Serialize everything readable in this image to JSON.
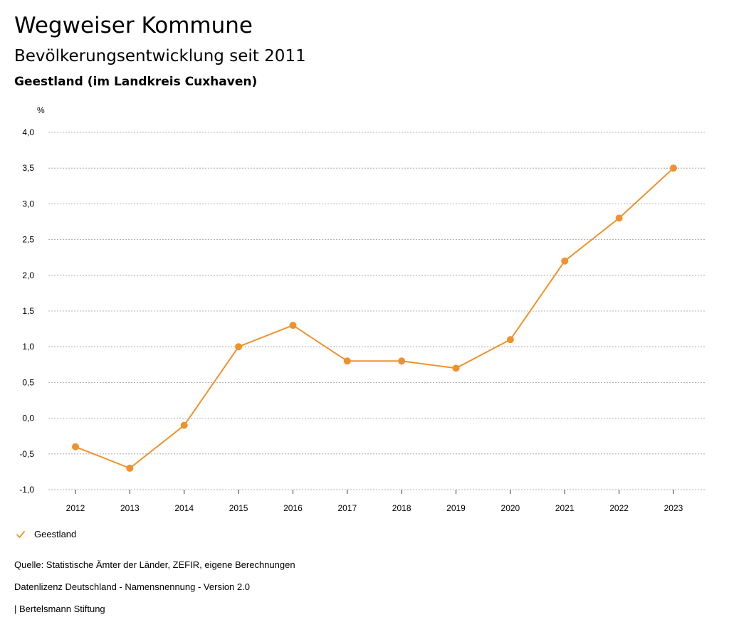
{
  "header": {
    "title": "Wegweiser Kommune",
    "subtitle": "Bevölkerungsentwicklung seit 2011",
    "region": "Geestland (im Landkreis Cuxhaven)"
  },
  "chart_data": {
    "type": "line",
    "title": "Bevölkerungsentwicklung seit 2011",
    "ylabel": "%",
    "xlabel": "",
    "ylim": [
      -1.0,
      4.0
    ],
    "yticks": [
      -1.0,
      -0.5,
      0.0,
      0.5,
      1.0,
      1.5,
      2.0,
      2.5,
      3.0,
      3.5,
      4.0
    ],
    "ytick_labels": [
      "-1,0",
      "-0,5",
      "0,0",
      "0,5",
      "1,0",
      "1,5",
      "2,0",
      "2,5",
      "3,0",
      "3,5",
      "4,0"
    ],
    "grid": true,
    "legend_position": "bottom-left",
    "categories": [
      "2012",
      "2013",
      "2014",
      "2015",
      "2016",
      "2017",
      "2018",
      "2019",
      "2020",
      "2021",
      "2022",
      "2023"
    ],
    "series": [
      {
        "name": "Geestland",
        "color": "#f0922c",
        "values": [
          -0.4,
          -0.7,
          -0.1,
          1.0,
          1.3,
          0.8,
          0.8,
          0.7,
          1.1,
          2.2,
          2.8,
          3.5
        ]
      }
    ]
  },
  "legend": {
    "items": [
      {
        "label": "Geestland",
        "color": "#f0922c",
        "icon": "check-icon"
      }
    ]
  },
  "footer": {
    "source": "Quelle: Statistische Ämter der Länder, ZEFIR, eigene Berechnungen",
    "license": "Datenlizenz Deutschland - Namensnennung - Version 2.0",
    "publisher": "| Bertelsmann Stiftung"
  }
}
